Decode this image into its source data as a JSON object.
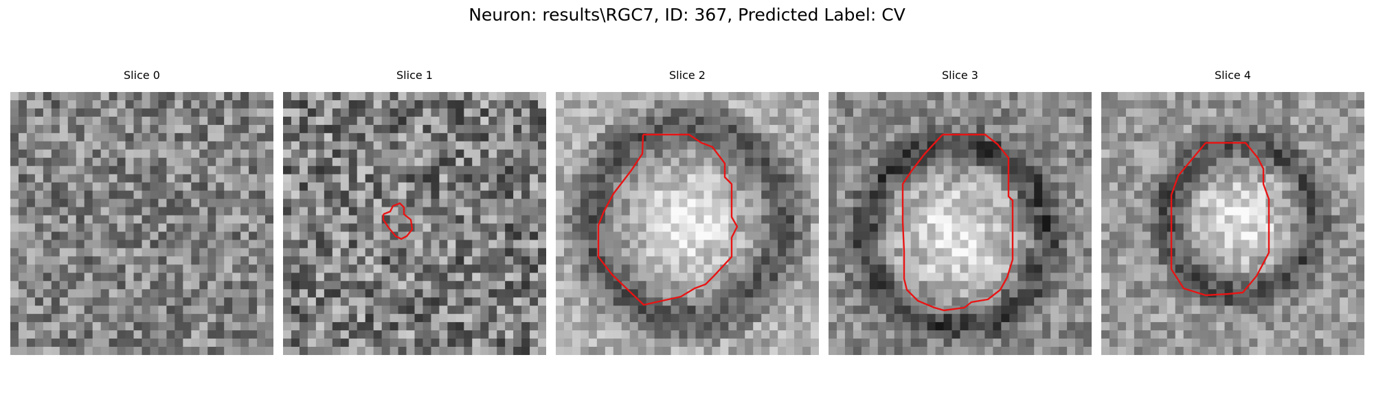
{
  "figure": {
    "title": "Neuron: results\\RGC7, ID: 367, Predicted Label: CV",
    "contour_color": "#e81414",
    "colormap": "grayscale"
  },
  "slices": [
    {
      "title": "Slice 0",
      "contour": null,
      "feature": "noise"
    },
    {
      "title": "Slice 1",
      "contour": "small-blob",
      "feature": "noise"
    },
    {
      "title": "Slice 2",
      "contour": "large-octagon",
      "feature": "bright-soma-dark-ring"
    },
    {
      "title": "Slice 3",
      "contour": "large-octagon",
      "feature": "bright-soma-dark-ring"
    },
    {
      "title": "Slice 4",
      "contour": "medium-octagon",
      "feature": "bright-soma-dark-ring"
    }
  ]
}
